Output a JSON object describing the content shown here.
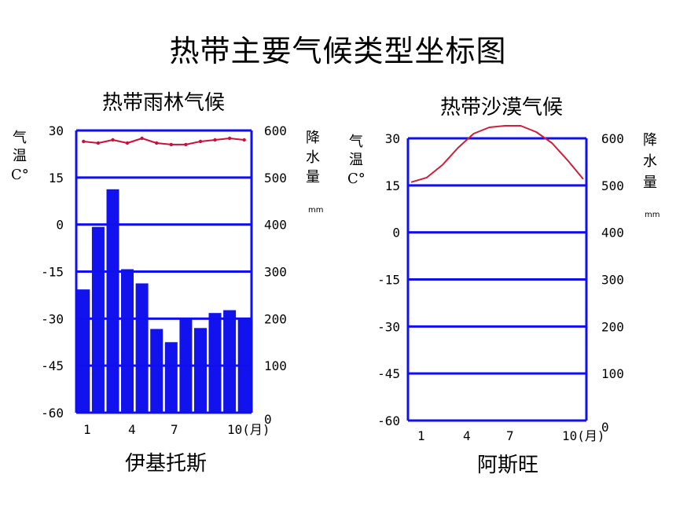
{
  "page": {
    "title": "热带主要气候类型坐标图"
  },
  "colors": {
    "axis": "#1010ee",
    "bar": "#1212ee",
    "temp_line_left": "#c4143c",
    "temp_line_right": "#cc1f3c"
  },
  "chart_data": [
    {
      "type": "bar+line",
      "title": "热带雨林气候",
      "place": "伊基托斯",
      "left_axis_label": [
        "气",
        "温",
        "C°"
      ],
      "right_axis_label": [
        "降",
        "水",
        "量"
      ],
      "right_axis_unit": "mm",
      "left_ticks": [
        "30",
        "15",
        "0",
        "-15",
        "-30",
        "-45",
        "-60"
      ],
      "right_ticks": [
        "600",
        "500",
        "400",
        "300",
        "200",
        "100",
        "0"
      ],
      "x_ticks": [
        "1",
        "4",
        "7",
        "10(月)"
      ],
      "temp_range": [
        -60,
        30
      ],
      "precip_range": [
        0,
        600
      ],
      "months": [
        1,
        2,
        3,
        4,
        5,
        6,
        7,
        8,
        9,
        10,
        11,
        12
      ],
      "precipitation_mm": [
        262,
        395,
        475,
        305,
        275,
        178,
        150,
        198,
        180,
        212,
        218,
        200
      ],
      "temperature_c": [
        26.5,
        26,
        27,
        26,
        27.5,
        26,
        25.5,
        25.5,
        26.5,
        27,
        27.5,
        27
      ]
    },
    {
      "type": "bar+line",
      "title": "热带沙漠气候",
      "place": "阿斯旺",
      "left_axis_label": [
        "气",
        "温",
        "C°"
      ],
      "right_axis_label": [
        "降",
        "水",
        "量"
      ],
      "right_axis_unit": "mm",
      "left_ticks": [
        "30",
        "15",
        "0",
        "-15",
        "-30",
        "-45",
        "-60"
      ],
      "right_ticks": [
        "600",
        "500",
        "400",
        "300",
        "200",
        "100",
        "0"
      ],
      "x_ticks": [
        "1",
        "4",
        "7",
        "10(月)"
      ],
      "temp_range": [
        -60,
        30
      ],
      "precip_range": [
        0,
        600
      ],
      "months": [
        1,
        2,
        3,
        4,
        5,
        6,
        7,
        8,
        9,
        10,
        11,
        12
      ],
      "precipitation_mm": [
        0,
        0,
        0,
        0,
        0,
        0,
        0,
        0,
        0,
        0,
        0,
        0
      ],
      "temperature_c": [
        16,
        17.5,
        21.5,
        27,
        31.5,
        33.5,
        34,
        34,
        32,
        28.5,
        23,
        17
      ]
    }
  ]
}
